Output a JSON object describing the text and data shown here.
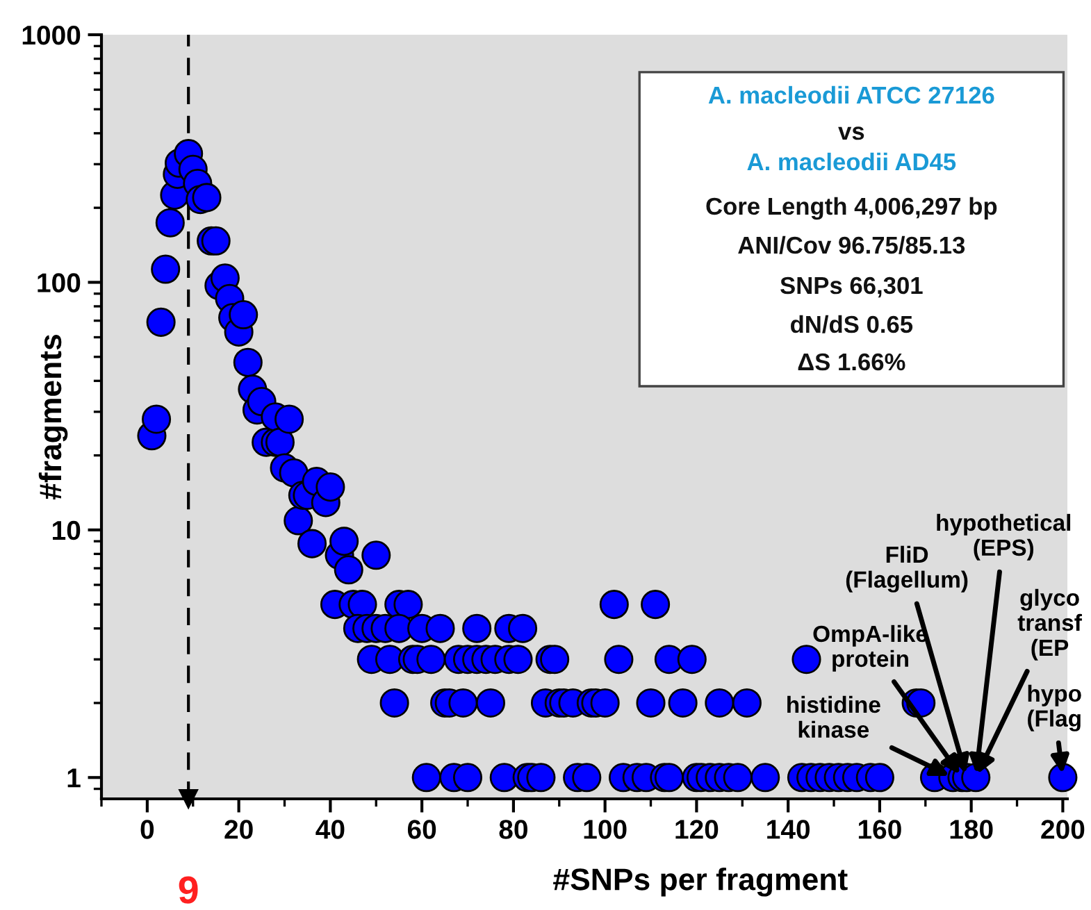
{
  "chart_data": {
    "type": "scatter",
    "xlabel": "#SNPs per fragment",
    "ylabel": "#fragments",
    "log": "y",
    "xlim": [
      -10,
      201
    ],
    "ylim": [
      0.82,
      1000
    ],
    "xticks": [
      0,
      20,
      40,
      60,
      80,
      100,
      120,
      140,
      160,
      180,
      200
    ],
    "yticks": [
      1,
      10,
      100,
      1000
    ],
    "grid": false,
    "legend": false,
    "marker": "circle",
    "series": [
      {
        "color": "#0000ff",
        "x": [
          1,
          2,
          3,
          4,
          5,
          6,
          6.6,
          7,
          9,
          10,
          11,
          11.6,
          13,
          14,
          15,
          15.7,
          17,
          18,
          18.7,
          20,
          21,
          22,
          23,
          24,
          25,
          26,
          28,
          28,
          29,
          30,
          31,
          32,
          33,
          34,
          35,
          36,
          37,
          39,
          40,
          42,
          43,
          44,
          50,
          41,
          45,
          47,
          55,
          57,
          102,
          111,
          46,
          48,
          50,
          52,
          55,
          60,
          64,
          72,
          79,
          82,
          49,
          53,
          58,
          59,
          62,
          68,
          70,
          72,
          74,
          76,
          79,
          81,
          88,
          89,
          103,
          114,
          119,
          144,
          54,
          65,
          66,
          69,
          75,
          87,
          90,
          91,
          93,
          97,
          98,
          100,
          110,
          117,
          125,
          131,
          168,
          169,
          61,
          67,
          70,
          78,
          83,
          84,
          86,
          94,
          96,
          104,
          107,
          109,
          113,
          114,
          120,
          121,
          123,
          125,
          127,
          129,
          135,
          143,
          145,
          147,
          149,
          151,
          153,
          155,
          158,
          160,
          172,
          176,
          178,
          179,
          181,
          200
        ],
        "values": [
          24,
          28,
          69,
          113,
          174,
          225,
          273,
          303,
          331,
          286,
          251,
          216,
          220,
          147,
          147,
          97,
          104,
          86,
          72,
          63,
          74,
          47.5,
          37,
          30.5,
          33,
          22.6,
          22.6,
          28.6,
          22.6,
          17.8,
          28,
          17,
          10.9,
          13.8,
          13.8,
          8.8,
          15.7,
          12.9,
          14.9,
          7.9,
          9,
          6.9,
          7.9,
          5,
          5,
          5,
          5,
          5,
          5,
          5,
          4,
          4,
          4,
          4,
          4,
          4,
          4,
          4,
          4,
          4,
          3,
          3,
          3,
          3,
          3,
          3,
          3,
          3,
          3,
          3,
          3,
          3,
          3,
          3,
          3,
          3,
          3,
          3,
          2,
          2,
          2,
          2,
          2,
          2,
          2,
          2,
          2,
          2,
          2,
          2,
          2,
          2,
          2,
          2,
          2,
          2,
          1,
          1,
          1,
          1,
          1,
          1,
          1,
          1,
          1,
          1,
          1,
          1,
          1,
          1,
          1,
          1,
          1,
          1,
          1,
          1,
          1,
          1,
          1,
          1,
          1,
          1,
          1,
          1,
          1,
          1,
          1,
          1,
          1,
          1,
          1,
          1
        ]
      }
    ],
    "ref_lines": [
      {
        "axis": "x",
        "value": 9,
        "label": "9",
        "color": "#000000",
        "line_style": "dashed"
      }
    ],
    "annotations": [
      "A. macleodii ATCC 27126",
      "vs",
      "A. macleodii AD45",
      "Core Length 4,006,297 bp",
      "ANI/Cov 96.75/85.13",
      "SNPs 66,301",
      "dN/dS 0.65",
      "ΔS 1.66%",
      {
        "text": "histidine\nkinase",
        "x": 176,
        "y": 1
      },
      {
        "text": "OmpA-like\nprotein",
        "x": 178,
        "y": 1
      },
      {
        "text": "FliD\n(Flagellum)",
        "x": 179,
        "y": 1
      },
      {
        "text": "hypothetical\n(EPS)",
        "x": 181,
        "y": 1
      },
      {
        "text": "glyco\ntransf\n(EP",
        "x": 181,
        "y": 1
      },
      {
        "text": "hypo\n(Flag",
        "x": 200,
        "y": 1
      }
    ]
  }
}
